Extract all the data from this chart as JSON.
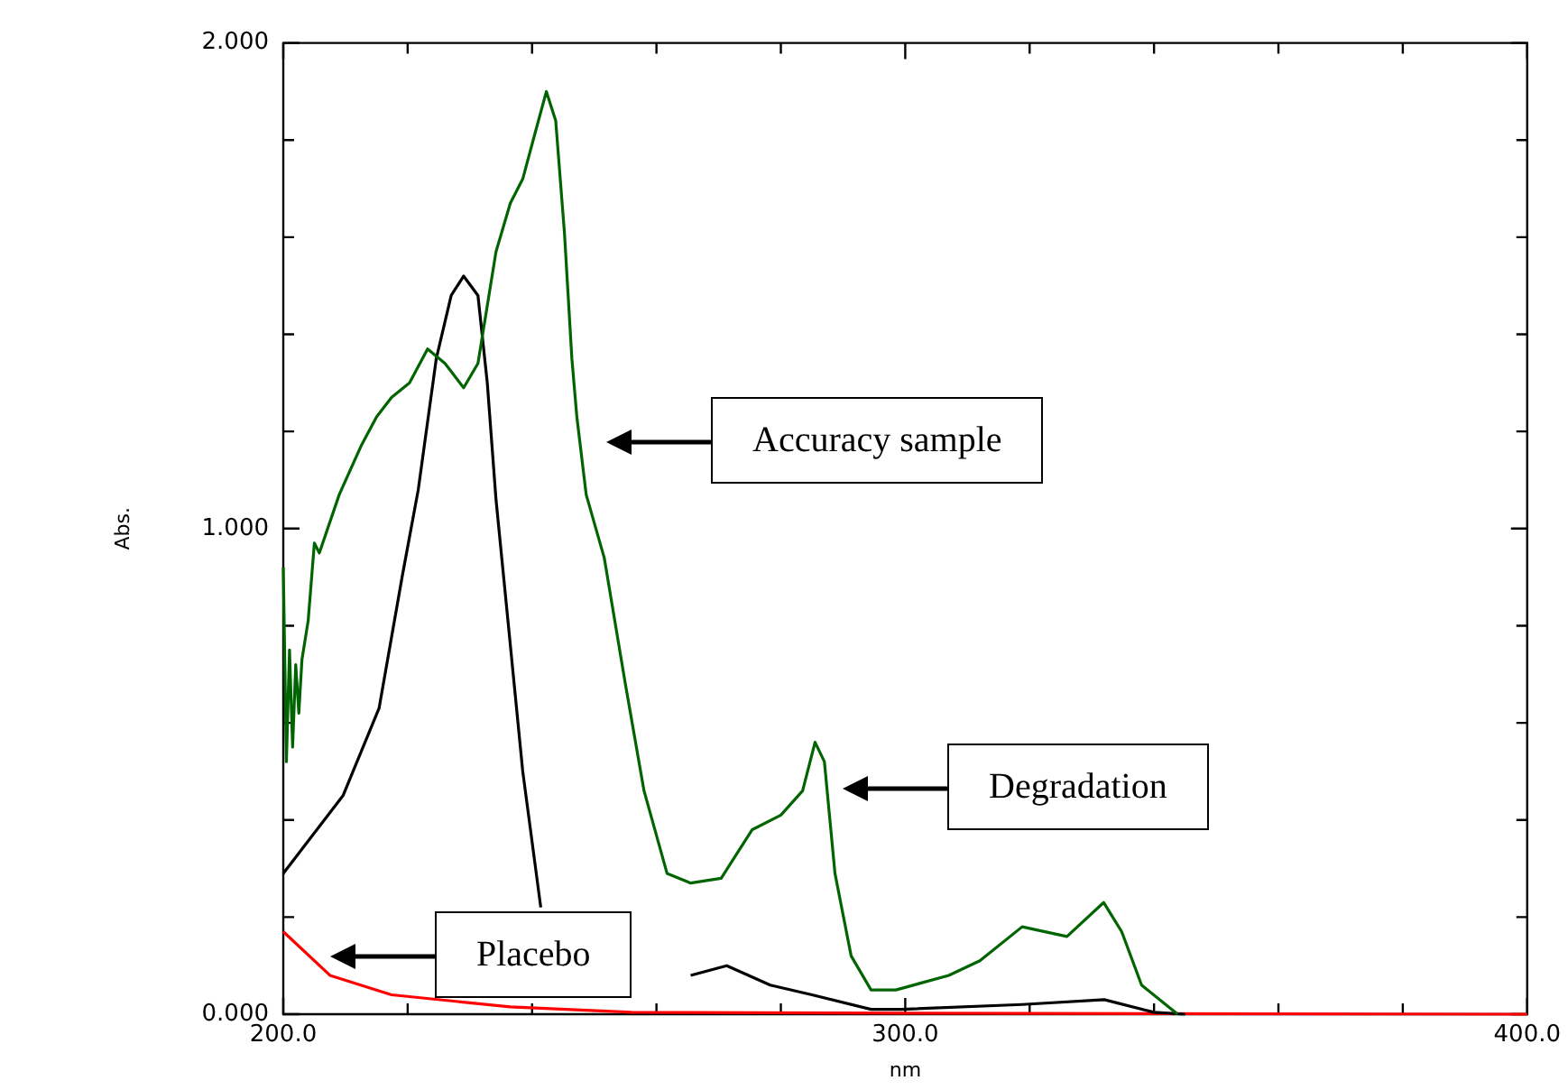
{
  "chart_data": {
    "type": "line",
    "xlabel": "nm",
    "ylabel": "Abs.",
    "xlim": [
      200,
      400
    ],
    "ylim": [
      0,
      2
    ],
    "xticks": [
      {
        "value": 200,
        "label": "200.0"
      },
      {
        "value": 220,
        "label": null
      },
      {
        "value": 240,
        "label": null
      },
      {
        "value": 260,
        "label": null
      },
      {
        "value": 280,
        "label": null
      },
      {
        "value": 300,
        "label": "300.0"
      },
      {
        "value": 320,
        "label": null
      },
      {
        "value": 340,
        "label": null
      },
      {
        "value": 360,
        "label": null
      },
      {
        "value": 380,
        "label": null
      },
      {
        "value": 400,
        "label": "400.0"
      }
    ],
    "yticks": [
      {
        "value": 0,
        "label": "0.000"
      },
      {
        "value": 0.2,
        "label": null
      },
      {
        "value": 0.4,
        "label": null
      },
      {
        "value": 0.6,
        "label": null
      },
      {
        "value": 0.8,
        "label": null
      },
      {
        "value": 1,
        "label": "1.000"
      },
      {
        "value": 1.2,
        "label": null
      },
      {
        "value": 1.4,
        "label": null
      },
      {
        "value": 1.6,
        "label": null
      },
      {
        "value": 1.8,
        "label": null
      },
      {
        "value": 2,
        "label": "2.000"
      }
    ],
    "grid": false,
    "legend": false,
    "marker": "none",
    "line_style": "solid",
    "series": [
      {
        "color": "#006400",
        "x": [
          200,
          200.5,
          201,
          201.5,
          202,
          202.5,
          203,
          204,
          205,
          205.8,
          209,
          212.5,
          215,
          217.4,
          220.3,
          223.2,
          226,
          229,
          231.3,
          234.2,
          236.5,
          238.5,
          240.6,
          242.3,
          243.8,
          245.2,
          246.4,
          247.2,
          248.7,
          251.6,
          255,
          258,
          261.7,
          265.5,
          270.4,
          275.4,
          280,
          283.5,
          285.5,
          287,
          288.7,
          291.3,
          294.5,
          298.5,
          307,
          312,
          318.8,
          326,
          331.9,
          334.8,
          338,
          343.8
        ],
        "values": [
          0.92,
          0.52,
          0.75,
          0.55,
          0.72,
          0.62,
          0.73,
          0.81,
          0.97,
          0.95,
          1.07,
          1.17,
          1.23,
          1.27,
          1.3,
          1.37,
          1.34,
          1.29,
          1.34,
          1.57,
          1.67,
          1.72,
          1.82,
          1.9,
          1.84,
          1.61,
          1.35,
          1.23,
          1.07,
          0.94,
          0.68,
          0.46,
          0.29,
          0.27,
          0.28,
          0.38,
          0.41,
          0.46,
          0.56,
          0.52,
          0.29,
          0.12,
          0.05,
          0.05,
          0.08,
          0.11,
          0.18,
          0.16,
          0.23,
          0.17,
          0.06,
          0
        ]
      },
      {
        "color": "#000000",
        "x": [
          200,
          209.6,
          215.4,
          219.1,
          221.7,
          224.6,
          227,
          229,
          231.3,
          232.8,
          234.2,
          236.2,
          238.5,
          241.4,
          244.3,
          265.5,
          271.3,
          278.3,
          285,
          294.5,
          299.4,
          318.8,
          332,
          340,
          345
        ],
        "values": [
          0.29,
          0.45,
          0.63,
          0.9,
          1.08,
          1.35,
          1.48,
          1.52,
          1.48,
          1.3,
          1.06,
          0.8,
          0.5,
          0.22,
          null,
          0.08,
          0.1,
          0.06,
          0.04,
          0.01,
          0.01,
          0.02,
          0.03,
          0.004,
          0
        ]
      },
      {
        "color": "#ff0000",
        "x": [
          200,
          207.5,
          217.4,
          236.5,
          256,
          300,
          400
        ],
        "values": [
          0.17,
          0.08,
          0.04,
          0.015,
          0.004,
          0.002,
          0
        ]
      }
    ],
    "annotations": [
      "Accuracy sample",
      "Degradation",
      "Placebo"
    ]
  }
}
